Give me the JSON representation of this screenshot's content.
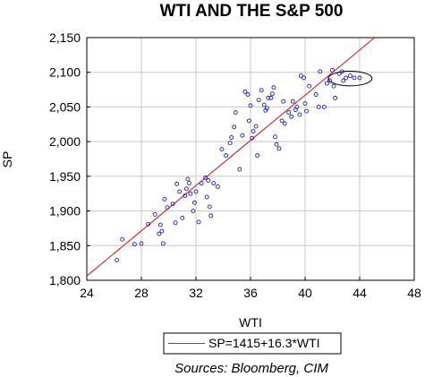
{
  "chart_data": {
    "type": "scatter",
    "title": "WTI AND THE S&P 500",
    "xlabel": "WTI",
    "ylabel": "SP",
    "xlim": [
      24,
      48
    ],
    "ylim": [
      1800,
      2150
    ],
    "x_ticks": [
      "24",
      "28",
      "32",
      "36",
      "40",
      "44",
      "48"
    ],
    "y_ticks": [
      "1,800",
      "1,850",
      "1,900",
      "1,950",
      "2,000",
      "2,050",
      "2,100",
      "2,150"
    ],
    "x_tick_values": [
      24,
      28,
      32,
      36,
      40,
      44,
      48
    ],
    "y_tick_values": [
      1800,
      1850,
      1900,
      1950,
      2000,
      2050,
      2100,
      2150
    ],
    "grid": true,
    "points": [
      [
        26.2,
        1829
      ],
      [
        26.6,
        1859
      ],
      [
        27.5,
        1852
      ],
      [
        28.0,
        1853
      ],
      [
        28.5,
        1881
      ],
      [
        29.0,
        1895
      ],
      [
        29.3,
        1867
      ],
      [
        29.5,
        1871
      ],
      [
        29.4,
        1880
      ],
      [
        29.6,
        1853
      ],
      [
        29.7,
        1917
      ],
      [
        29.9,
        1905
      ],
      [
        30.3,
        1910
      ],
      [
        30.5,
        1883
      ],
      [
        30.8,
        1928
      ],
      [
        30.6,
        1939
      ],
      [
        31.0,
        1890
      ],
      [
        31.2,
        1922
      ],
      [
        31.3,
        1932
      ],
      [
        31.4,
        1946
      ],
      [
        31.5,
        1940
      ],
      [
        31.6,
        1925
      ],
      [
        31.8,
        1900
      ],
      [
        31.9,
        1912
      ],
      [
        32.0,
        1928
      ],
      [
        32.2,
        1884
      ],
      [
        32.4,
        1940
      ],
      [
        32.7,
        1948
      ],
      [
        32.8,
        1920
      ],
      [
        32.9,
        1944
      ],
      [
        33.0,
        1906
      ],
      [
        33.1,
        1893
      ],
      [
        33.3,
        1940
      ],
      [
        33.6,
        1935
      ],
      [
        33.9,
        1989
      ],
      [
        34.2,
        1980
      ],
      [
        34.5,
        1998
      ],
      [
        34.6,
        2006
      ],
      [
        34.8,
        2021
      ],
      [
        34.9,
        2042
      ],
      [
        35.2,
        1960
      ],
      [
        35.4,
        2009
      ],
      [
        35.6,
        2072
      ],
      [
        35.8,
        2068
      ],
      [
        35.9,
        2030
      ],
      [
        36.0,
        2052
      ],
      [
        36.1,
        2005
      ],
      [
        36.2,
        2015
      ],
      [
        36.4,
        2022
      ],
      [
        36.5,
        1980
      ],
      [
        36.6,
        2060
      ],
      [
        36.8,
        2074
      ],
      [
        37.0,
        2053
      ],
      [
        37.1,
        2045
      ],
      [
        37.2,
        2048
      ],
      [
        37.3,
        2063
      ],
      [
        37.5,
        2063
      ],
      [
        37.6,
        2069
      ],
      [
        37.7,
        2078
      ],
      [
        37.8,
        2007
      ],
      [
        37.9,
        1996
      ],
      [
        38.1,
        1990
      ],
      [
        38.3,
        2030
      ],
      [
        38.4,
        2058
      ],
      [
        38.5,
        2026
      ],
      [
        38.8,
        2042
      ],
      [
        39.0,
        2036
      ],
      [
        39.1,
        2058
      ],
      [
        39.3,
        2046
      ],
      [
        39.4,
        2050
      ],
      [
        39.6,
        2039
      ],
      [
        39.7,
        2095
      ],
      [
        39.9,
        2092
      ],
      [
        40.0,
        2055
      ],
      [
        40.1,
        2044
      ],
      [
        40.3,
        2080
      ],
      [
        40.8,
        2068
      ],
      [
        41.0,
        2050
      ],
      [
        41.1,
        2101
      ],
      [
        41.4,
        2050
      ],
      [
        41.6,
        2084
      ],
      [
        41.8,
        2088
      ],
      [
        42.0,
        2103
      ],
      [
        42.1,
        2080
      ],
      [
        42.2,
        2063
      ],
      [
        42.5,
        2098
      ],
      [
        42.7,
        2101
      ],
      [
        42.8,
        2088
      ],
      [
        43.0,
        2092
      ],
      [
        43.3,
        2095
      ],
      [
        43.6,
        2092
      ],
      [
        44.0,
        2092
      ]
    ],
    "regression": {
      "label": "SP=1415+16.3*WTI",
      "intercept": 1415,
      "slope": 16.3
    },
    "highlight_ellipse": {
      "cx": 43.3,
      "cy": 2091,
      "rx": 1.6,
      "ry": 10.5
    },
    "legend": "bottom",
    "colors": {
      "points": "#1f1fb8",
      "line": "#d42020",
      "grid": "#c8c8c8"
    }
  },
  "source_text": "Sources:  Bloomberg, CIM"
}
